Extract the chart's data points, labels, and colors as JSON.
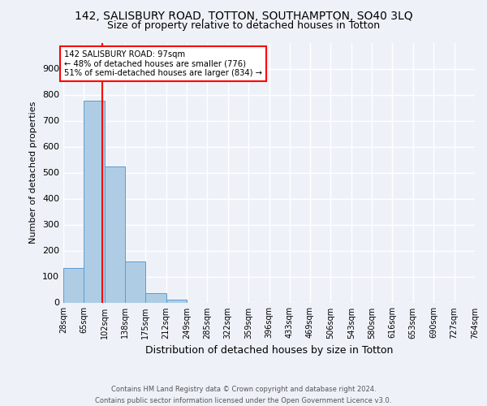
{
  "title": "142, SALISBURY ROAD, TOTTON, SOUTHAMPTON, SO40 3LQ",
  "subtitle": "Size of property relative to detached houses in Totton",
  "xlabel": "Distribution of detached houses by size in Totton",
  "ylabel": "Number of detached properties",
  "footer_line1": "Contains HM Land Registry data © Crown copyright and database right 2024.",
  "footer_line2": "Contains public sector information licensed under the Open Government Licence v3.0.",
  "bar_edges": [
    28,
    65,
    102,
    138,
    175,
    212,
    249,
    285,
    322,
    359,
    396,
    433,
    469,
    506,
    543,
    580,
    616,
    653,
    690,
    727,
    764
  ],
  "bar_heights": [
    133,
    776,
    525,
    158,
    37,
    10,
    0,
    0,
    0,
    0,
    0,
    0,
    0,
    0,
    0,
    0,
    0,
    0,
    0,
    0
  ],
  "bar_color": "#aecde4",
  "bar_edgecolor": "#5b9bd5",
  "vline_x": 97,
  "vline_color": "red",
  "annotation_text": "142 SALISBURY ROAD: 97sqm\n← 48% of detached houses are smaller (776)\n51% of semi-detached houses are larger (834) →",
  "annotation_box_color": "white",
  "annotation_box_edgecolor": "red",
  "ylim": [
    0,
    1000
  ],
  "yticks": [
    0,
    100,
    200,
    300,
    400,
    500,
    600,
    700,
    800,
    900
  ],
  "background_color": "#eef2f8",
  "plot_background_color": "#eef2f8",
  "grid_color": "white",
  "title_fontsize": 10,
  "subtitle_fontsize": 9
}
